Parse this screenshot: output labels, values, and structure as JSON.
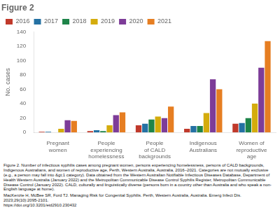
{
  "chart_data": {
    "type": "bar",
    "title": "Figure 2",
    "y_label": "No. cases",
    "categories": [
      "Pregnant\nwomen",
      "People\nexperiencing\nhomelessness",
      "People\nof CALD\nbackgrounds",
      "Indigenous\nAustralians",
      "Women of\nreproductive\nage"
    ],
    "series": [
      {
        "name": "2016",
        "color": "#c0392b",
        "values": [
          1,
          2,
          10,
          5,
          12
        ]
      },
      {
        "name": "2017",
        "color": "#2471a3",
        "values": [
          1,
          3,
          12,
          9,
          13
        ]
      },
      {
        "name": "2018",
        "color": "#1e8449",
        "values": [
          0,
          2,
          18,
          9,
          20
        ]
      },
      {
        "name": "2019",
        "color": "#d4ac0d",
        "values": [
          5,
          10,
          22,
          27,
          40
        ]
      },
      {
        "name": "2020",
        "color": "#7d3c98",
        "values": [
          17,
          24,
          20,
          74,
          90
        ]
      },
      {
        "name": "2021",
        "color": "#e67e22",
        "values": [
          16,
          28,
          36,
          60,
          127
        ]
      }
    ],
    "ylim": [
      0,
      140
    ],
    "yticks": [
      0,
      20,
      40,
      60,
      80,
      100,
      120,
      140
    ],
    "grid": false,
    "legend": "upper left",
    "annotations": [
      "Figure 2. Number of infectious syphilis cases among pregnant women, persons experiencing homelessness, persons of CALD backgrounds, Indigenous Australians, and women of reproductive age, Perth, Western Australia, Australia, 2016–2021. Categories are not mutually exclusive (e.g., a person may fall into &gt;1 category). Data obtained from the Western Australian Notifiable Infectious Diseases Database, Department of Health Western Australia (January 2022) and the Metropolitan Communicable Disease Control Syphilis Register, Metropolitan Communicable Disease Control (January 2022). CALD, culturally and linguistically diverse (persons born in a country other than Australia and who speak a non-English language at home).",
      "MacKenzie H, McBee SR, Ford TJ. Managing Risk for Congenital Syphilis. Perth, Western Australia, Australia. Emerg Infect Dis. 2023;29(10):2095-2101.\nhttps://doi.org/10.3201/eid2910.230432"
    ]
  }
}
